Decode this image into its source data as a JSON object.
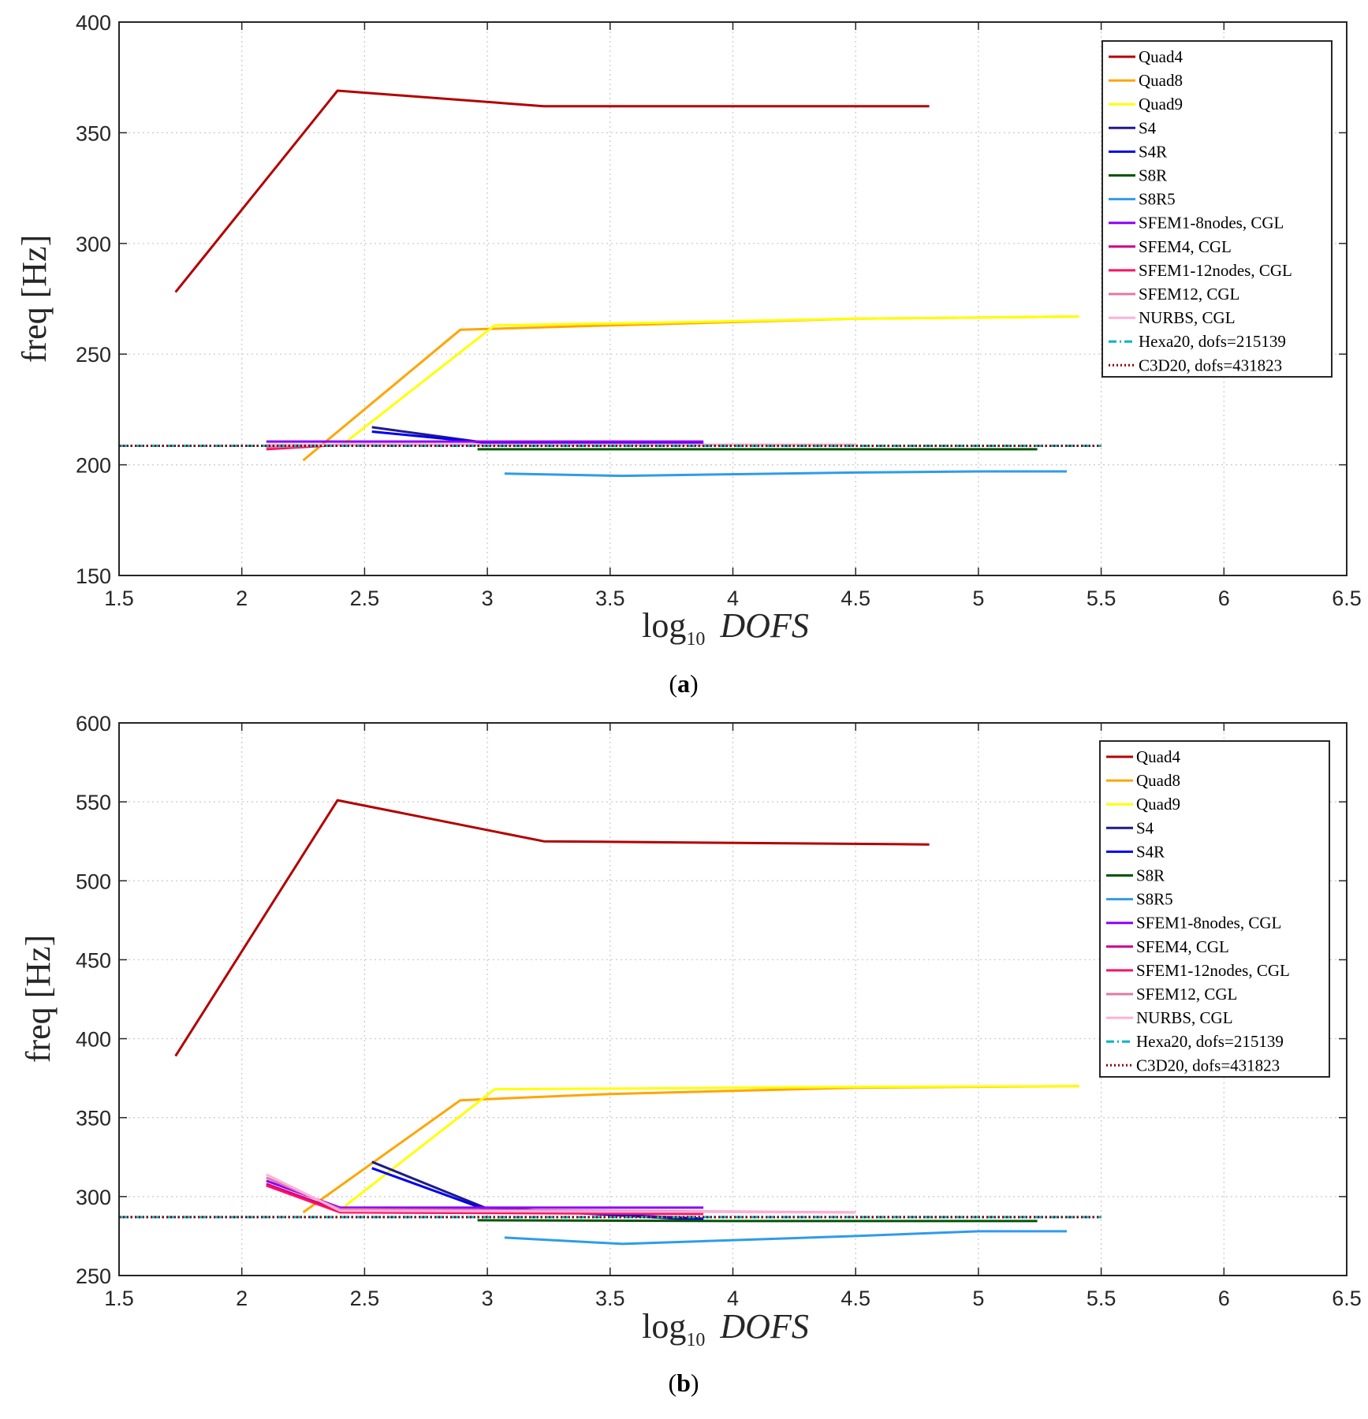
{
  "chart_data": [
    {
      "type": "line",
      "caption_letter": "a",
      "xlabel": "log",
      "xlabel_sub": "10",
      "xlabel_var": "DOFS",
      "ylabel": "freq [Hz]",
      "xlim": [
        1.5,
        6.5
      ],
      "ylim": [
        150,
        400
      ],
      "xticks": [
        "1.5",
        "2",
        "2.5",
        "3",
        "3.5",
        "4",
        "4.5",
        "5",
        "5.5",
        "6",
        "6.5"
      ],
      "yticks": [
        "150",
        "200",
        "250",
        "300",
        "350",
        "400"
      ],
      "grid": true,
      "legend_position": "top-right",
      "series": [
        {
          "name": "Quad4",
          "color": "#b30000",
          "style": "solid",
          "x": [
            1.73,
            2.39,
            3.23,
            4.8
          ],
          "y": [
            278,
            369,
            362,
            362
          ]
        },
        {
          "name": "Quad8",
          "color": "#ffa500",
          "style": "solid",
          "x": [
            2.25,
            2.89,
            3.5,
            4.5,
            5.41
          ],
          "y": [
            202,
            261,
            263,
            266,
            267
          ]
        },
        {
          "name": "Quad9",
          "color": "#ffff00",
          "style": "solid",
          "x": [
            2.42,
            3.03,
            3.6,
            4.5,
            5.41
          ],
          "y": [
            210,
            263,
            264,
            266,
            267
          ]
        },
        {
          "name": "S4",
          "color": "#1f1a8c",
          "style": "solid",
          "x": [
            2.53,
            2.99,
            3.88
          ],
          "y": [
            217,
            210,
            210
          ]
        },
        {
          "name": "S4R",
          "color": "#0000ee",
          "style": "solid",
          "x": [
            2.53,
            2.99,
            3.88
          ],
          "y": [
            215,
            210,
            210
          ]
        },
        {
          "name": "S8R",
          "color": "#005500",
          "style": "solid",
          "x": [
            2.96,
            4.0,
            5.24
          ],
          "y": [
            207,
            207,
            207
          ]
        },
        {
          "name": "S8R5",
          "color": "#2f9bec",
          "style": "solid",
          "x": [
            3.07,
            3.55,
            4.5,
            5.0,
            5.36
          ],
          "y": [
            196,
            195,
            196.5,
            197,
            197
          ]
        },
        {
          "name": "SFEM1-8nodes, CGL",
          "color": "#8b00ff",
          "style": "solid",
          "x": [
            2.1,
            2.4,
            3.88
          ],
          "y": [
            210.5,
            210.5,
            210.5
          ]
        },
        {
          "name": "SFEM4, CGL",
          "color": "#cc0088",
          "style": "solid",
          "x": [
            2.1,
            2.4,
            3.88
          ],
          "y": [
            208,
            209,
            209
          ]
        },
        {
          "name": "SFEM1-12nodes, CGL",
          "color": "#ff1060",
          "style": "solid",
          "x": [
            2.1,
            2.4,
            3.88
          ],
          "y": [
            207,
            209,
            209
          ]
        },
        {
          "name": "SFEM12, CGL",
          "color": "#dd7aa6",
          "style": "solid",
          "x": [
            2.1,
            2.4,
            4.5
          ],
          "y": [
            208,
            209,
            209
          ]
        },
        {
          "name": "NURBS, CGL",
          "color": "#ffb0d8",
          "style": "solid",
          "x": [
            2.1,
            2.4,
            4.5
          ],
          "y": [
            209,
            209,
            209
          ]
        },
        {
          "name": "Hexa20, dofs=215139",
          "color": "#00b4c8",
          "style": "dashdot",
          "x": [
            1.5,
            5.5
          ],
          "y": [
            208.6,
            208.6
          ]
        },
        {
          "name": "C3D20, dofs=431823",
          "color": "#8b0000",
          "style": "dotted",
          "x": [
            1.5,
            5.5
          ],
          "y": [
            208.6,
            208.6
          ]
        }
      ]
    },
    {
      "type": "line",
      "caption_letter": "b",
      "xlabel": "log",
      "xlabel_sub": "10",
      "xlabel_var": "DOFS",
      "ylabel": "freq [Hz]",
      "xlim": [
        1.5,
        6.5
      ],
      "ylim": [
        250,
        600
      ],
      "xticks": [
        "1.5",
        "2",
        "2.5",
        "3",
        "3.5",
        "4",
        "4.5",
        "5",
        "5.5",
        "6",
        "6.5"
      ],
      "yticks": [
        "250",
        "300",
        "350",
        "400",
        "450",
        "500",
        "550",
        "600"
      ],
      "grid": true,
      "legend_position": "top-right",
      "series": [
        {
          "name": "Quad4",
          "color": "#b30000",
          "style": "solid",
          "x": [
            1.73,
            2.39,
            3.23,
            4.8
          ],
          "y": [
            389,
            551,
            525,
            523
          ]
        },
        {
          "name": "Quad8",
          "color": "#ffa500",
          "style": "solid",
          "x": [
            2.25,
            2.89,
            3.5,
            4.5,
            5.41
          ],
          "y": [
            290,
            361,
            365,
            369,
            370
          ]
        },
        {
          "name": "Quad9",
          "color": "#ffff00",
          "style": "solid",
          "x": [
            2.42,
            3.03,
            3.6,
            4.5,
            5.41
          ],
          "y": [
            294,
            368,
            368.5,
            369.5,
            370
          ]
        },
        {
          "name": "S4",
          "color": "#1f1a8c",
          "style": "solid",
          "x": [
            2.53,
            2.99,
            3.88
          ],
          "y": [
            322,
            293,
            285
          ]
        },
        {
          "name": "S4R",
          "color": "#0000ee",
          "style": "solid",
          "x": [
            2.53,
            2.99,
            3.88
          ],
          "y": [
            318,
            292,
            286
          ]
        },
        {
          "name": "S8R",
          "color": "#005500",
          "style": "solid",
          "x": [
            2.96,
            4.0,
            5.24
          ],
          "y": [
            285,
            284.5,
            284.5
          ]
        },
        {
          "name": "S8R5",
          "color": "#2f9bec",
          "style": "solid",
          "x": [
            3.07,
            3.55,
            4.5,
            5.0,
            5.36
          ],
          "y": [
            274,
            270,
            275,
            278,
            278
          ]
        },
        {
          "name": "SFEM1-8nodes, CGL",
          "color": "#8b00ff",
          "style": "solid",
          "x": [
            2.1,
            2.4,
            3.88
          ],
          "y": [
            310,
            293,
            293
          ]
        },
        {
          "name": "SFEM4, CGL",
          "color": "#cc0088",
          "style": "solid",
          "x": [
            2.1,
            2.4,
            3.88
          ],
          "y": [
            308,
            291,
            290
          ]
        },
        {
          "name": "SFEM1-12nodes, CGL",
          "color": "#ff1060",
          "style": "solid",
          "x": [
            2.1,
            2.4,
            3.88
          ],
          "y": [
            307,
            290,
            289
          ]
        },
        {
          "name": "SFEM12, CGL",
          "color": "#dd7aa6",
          "style": "solid",
          "x": [
            2.1,
            2.4,
            4.5
          ],
          "y": [
            312,
            292,
            290
          ]
        },
        {
          "name": "NURBS, CGL",
          "color": "#ffb0d8",
          "style": "solid",
          "x": [
            2.1,
            2.4,
            4.5
          ],
          "y": [
            314,
            291,
            290
          ]
        },
        {
          "name": "Hexa20, dofs=215139",
          "color": "#00b4c8",
          "style": "dashdot",
          "x": [
            1.5,
            5.5
          ],
          "y": [
            287,
            287
          ]
        },
        {
          "name": "C3D20, dofs=431823",
          "color": "#8b0000",
          "style": "dotted",
          "x": [
            1.5,
            5.5
          ],
          "y": [
            287,
            287
          ]
        }
      ]
    }
  ]
}
